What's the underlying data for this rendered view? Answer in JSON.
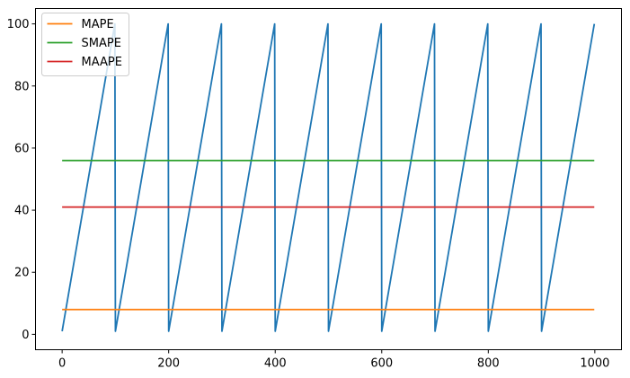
{
  "chart_data": {
    "type": "line",
    "title": "",
    "xlabel": "",
    "ylabel": "",
    "xlim": [
      -50,
      1050
    ],
    "ylim": [
      -4.95,
      104.95
    ],
    "x_ticks": [
      0,
      200,
      400,
      600,
      800,
      1000
    ],
    "y_ticks": [
      0,
      20,
      40,
      60,
      80,
      100
    ],
    "grid": false,
    "legend_position": "upper-left",
    "series": [
      {
        "color": "#1f77b4",
        "x": [
          0,
          99,
          100,
          199,
          200,
          299,
          300,
          399,
          400,
          499,
          500,
          599,
          600,
          699,
          700,
          799,
          800,
          899,
          900,
          999
        ],
        "y": [
          1,
          100,
          1,
          100,
          1,
          100,
          1,
          100,
          1,
          100,
          1,
          100,
          1,
          100,
          1,
          100,
          1,
          100,
          1,
          100
        ]
      },
      {
        "name": "MAPE",
        "color": "#ff7f0e",
        "x": [
          0,
          999
        ],
        "y": [
          8,
          8
        ]
      },
      {
        "name": "SMAPE",
        "color": "#2ca02c",
        "x": [
          0,
          999
        ],
        "y": [
          56,
          56
        ]
      },
      {
        "name": "MAAPE",
        "color": "#d62728",
        "x": [
          0,
          999
        ],
        "y": [
          41,
          41
        ]
      }
    ]
  }
}
